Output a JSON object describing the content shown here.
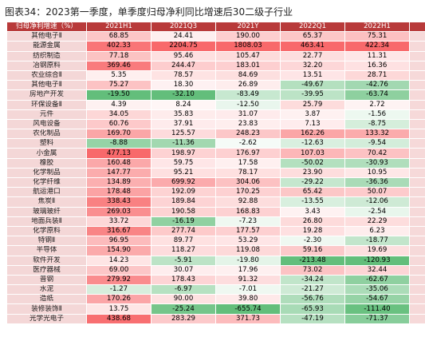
{
  "title": "图表34：2023第一季度，单季度归母净利同比增速后30二级子行业",
  "table": {
    "header": [
      "归母净利增速（%）",
      "2021H1",
      "2021Q3",
      "2021Y",
      "2022Q1",
      "2022H1"
    ],
    "rows": [
      [
        "其他电子Ⅱ",
        "68.85",
        "24.41",
        "190.00",
        "65.37",
        "75.31"
      ],
      [
        "能源金属",
        "402.33",
        "2204.75",
        "1808.03",
        "463.41",
        "422.34"
      ],
      [
        "纺织制造",
        "77.18",
        "95.46",
        "105.47",
        "22.77",
        "11.31"
      ],
      [
        "冶钢原料",
        "369.46",
        "244.47",
        "183.01",
        "32.20",
        "16.36"
      ],
      [
        "农业综合Ⅱ",
        "5.35",
        "78.57",
        "84.69",
        "13.51",
        "28.71"
      ],
      [
        "其他电子Ⅱ",
        "75.27",
        "18.30",
        "26.89",
        "-49.67",
        "-42.76"
      ],
      [
        "房地产开发",
        "-19.50",
        "-32.10",
        "-83.49",
        "-39.95",
        "-63.74"
      ],
      [
        "环保设备Ⅱ",
        "4.39",
        "8.24",
        "-12.50",
        "25.79",
        "2.72"
      ],
      [
        "元件",
        "34.05",
        "35.83",
        "31.07",
        "3.87",
        "-1.56"
      ],
      [
        "风电设备",
        "60.76",
        "37.91",
        "23.83",
        "7.13",
        "-8.75"
      ],
      [
        "农化制品",
        "169.70",
        "125.57",
        "248.23",
        "162.26",
        "133.32"
      ],
      [
        "塑料",
        "-8.88",
        "-11.36",
        "-2.62",
        "-12.63",
        "-9.54"
      ],
      [
        "小金属",
        "477.13",
        "198.97",
        "176.97",
        "107.03",
        "70.42"
      ],
      [
        "橡胶",
        "160.48",
        "59.75",
        "17.58",
        "-50.02",
        "-30.93"
      ],
      [
        "化学制品",
        "147.77",
        "95.21",
        "78.17",
        "23.90",
        "10.95"
      ],
      [
        "化学纤维",
        "134.89",
        "699.92",
        "304.06",
        "-29.22",
        "-36.36"
      ],
      [
        "航运港口",
        "178.48",
        "192.09",
        "170.25",
        "65.42",
        "50.07"
      ],
      [
        "焦炭Ⅱ",
        "338.43",
        "189.84",
        "92.88",
        "-13.55",
        "-12.06"
      ],
      [
        "玻璃玻纤",
        "269.03",
        "190.58",
        "168.83",
        "3.43",
        "-2.54"
      ],
      [
        "地面兵装Ⅱ",
        "33.72",
        "-16.19",
        "-7.23",
        "26.80",
        "22.29"
      ],
      [
        "化学原料",
        "316.67",
        "277.74",
        "177.57",
        "19.28",
        "6.23"
      ],
      [
        "特钢Ⅱ",
        "96.95",
        "89.77",
        "53.29",
        "-2.30",
        "-18.77"
      ],
      [
        "半导体",
        "154.90",
        "118.27",
        "119.08",
        "59.16",
        "19.69"
      ],
      [
        "软件开发",
        "14.23",
        "-5.91",
        "-19.80",
        "-213.48",
        "-120.93"
      ],
      [
        "医疗器械",
        "69.00",
        "30.07",
        "17.96",
        "73.02",
        "32.44"
      ],
      [
        "普钢",
        "279.92",
        "178.43",
        "91.32",
        "-34.24",
        "-62.67"
      ],
      [
        "水泥",
        "-1.27",
        "-6.97",
        "-7.01",
        "-21.27",
        "-35.06"
      ],
      [
        "造纸",
        "170.26",
        "90.00",
        "39.80",
        "-56.76",
        "-54.67"
      ],
      [
        "装修装饰Ⅱ",
        "13.75",
        "-25.24",
        "-655.74",
        "-65.93",
        "-111.40"
      ],
      [
        "光学光电子",
        "438.68",
        "283.29",
        "371.73",
        "-47.19",
        "-71.37"
      ]
    ]
  }
}
